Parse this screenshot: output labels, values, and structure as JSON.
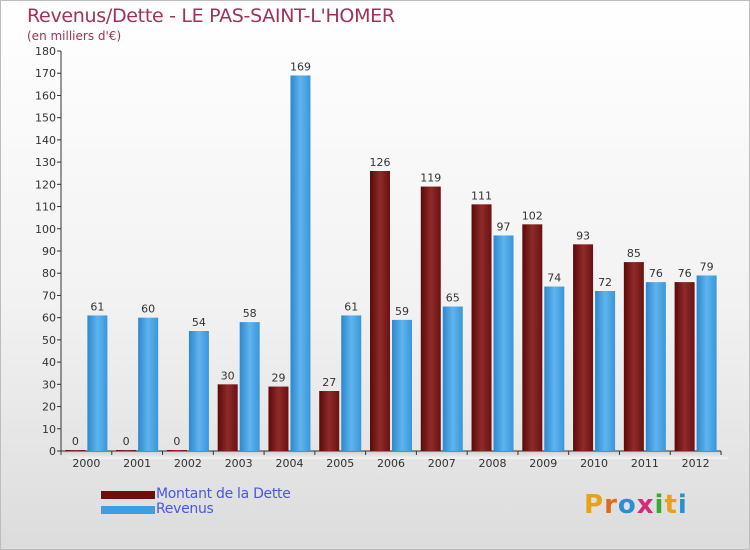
{
  "title": "Revenus/Dette - LE PAS-SAINT-L'HOMER",
  "subtitle": "(en milliers d'€)",
  "colors": {
    "dette": "#7a1818",
    "revenus": "#3d9ee2",
    "title": "#a3305a",
    "legend_text": "#4a57d9"
  },
  "legend": [
    {
      "label": "Montant de la Dette",
      "color": "#6b0f0f"
    },
    {
      "label": "Revenus",
      "color": "#3d9ee2"
    }
  ],
  "logo": {
    "text": "Proxiti"
  },
  "chart_data": {
    "type": "bar",
    "title": "Revenus/Dette - LE PAS-SAINT-L'HOMER",
    "subtitle": "(en milliers d'€)",
    "categories": [
      "2000",
      "2001",
      "2002",
      "2003",
      "2004",
      "2005",
      "2006",
      "2007",
      "2008",
      "2009",
      "2010",
      "2011",
      "2012"
    ],
    "series": [
      {
        "name": "Montant de la Dette",
        "values": [
          0,
          0,
          0,
          30,
          29,
          27,
          126,
          119,
          111,
          102,
          93,
          85,
          76
        ]
      },
      {
        "name": "Revenus",
        "values": [
          61,
          60,
          54,
          58,
          169,
          61,
          59,
          65,
          97,
          74,
          72,
          76,
          79
        ]
      }
    ],
    "ylim": [
      0,
      180
    ],
    "yticks": [
      0,
      10,
      20,
      30,
      40,
      50,
      60,
      70,
      80,
      90,
      100,
      110,
      120,
      130,
      140,
      150,
      160,
      170,
      180
    ],
    "grid": false,
    "legend_position": "bottom-left"
  }
}
